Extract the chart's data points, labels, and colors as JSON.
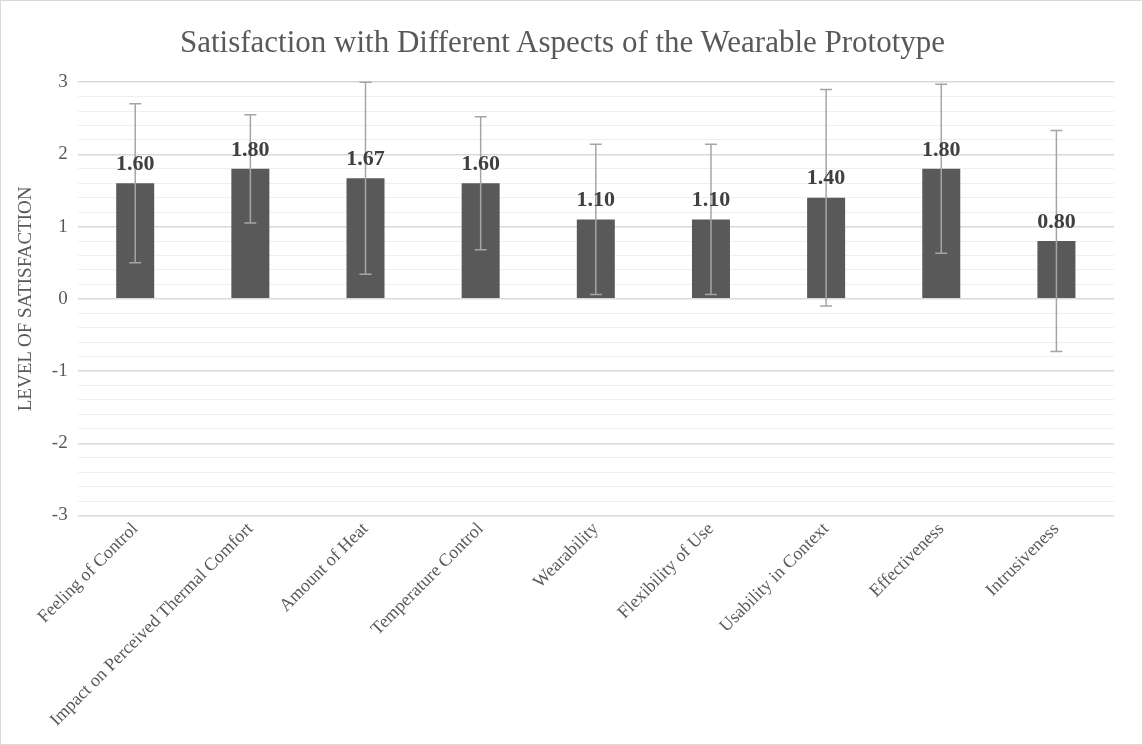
{
  "chart_data": {
    "type": "bar",
    "title": "Satisfaction with Different Aspects of the Wearable Prototype",
    "ylabel": "LEVEL OF SATISFACTION",
    "categories": [
      "Feeling of Control",
      "Impact on Perceived Thermal Comfort",
      "Amount of Heat",
      "Temperature Control",
      "Wearability",
      "Flexibility of Use",
      "Usability in Context",
      "Effectiveness",
      "Intrusiveness"
    ],
    "values": [
      1.6,
      1.8,
      1.67,
      1.6,
      1.1,
      1.1,
      1.4,
      1.8,
      0.8
    ],
    "errors": [
      1.1,
      0.75,
      1.33,
      0.92,
      1.04,
      1.04,
      1.5,
      1.17,
      1.53
    ],
    "value_labels": [
      "1.60",
      "1.80",
      "1.67",
      "1.60",
      "1.10",
      "1.10",
      "1.40",
      "1.80",
      "0.80"
    ],
    "color": "#595959",
    "grid": "y",
    "legend": false,
    "ylim": [
      -3,
      3
    ],
    "yticks": [
      -3,
      {
        "value": -2.8,
        "label": null
      },
      {
        "value": -2.6,
        "label": null
      },
      {
        "value": -2.4,
        "label": null
      },
      {
        "value": -2.2,
        "label": null
      },
      -2,
      {
        "value": -1.8,
        "label": null
      },
      {
        "value": -1.6,
        "label": null
      },
      {
        "value": -1.4,
        "label": null
      },
      {
        "value": -1.2,
        "label": null
      },
      -1,
      {
        "value": -0.8,
        "label": null
      },
      {
        "value": -0.6,
        "label": null
      },
      {
        "value": -0.4,
        "label": null
      },
      {
        "value": -0.2,
        "label": null
      },
      0,
      {
        "value": 0.2,
        "label": null
      },
      {
        "value": 0.4,
        "label": null
      },
      {
        "value": 0.6,
        "label": null
      },
      {
        "value": 0.8,
        "label": null
      },
      1,
      {
        "value": 1.2,
        "label": null
      },
      {
        "value": 1.4,
        "label": null
      },
      {
        "value": 1.6,
        "label": null
      },
      {
        "value": 1.8,
        "label": null
      },
      2,
      {
        "value": 2.2,
        "label": null
      },
      {
        "value": 2.4,
        "label": null
      },
      {
        "value": 2.6,
        "label": null
      },
      {
        "value": 2.8,
        "label": null
      },
      3
    ]
  }
}
